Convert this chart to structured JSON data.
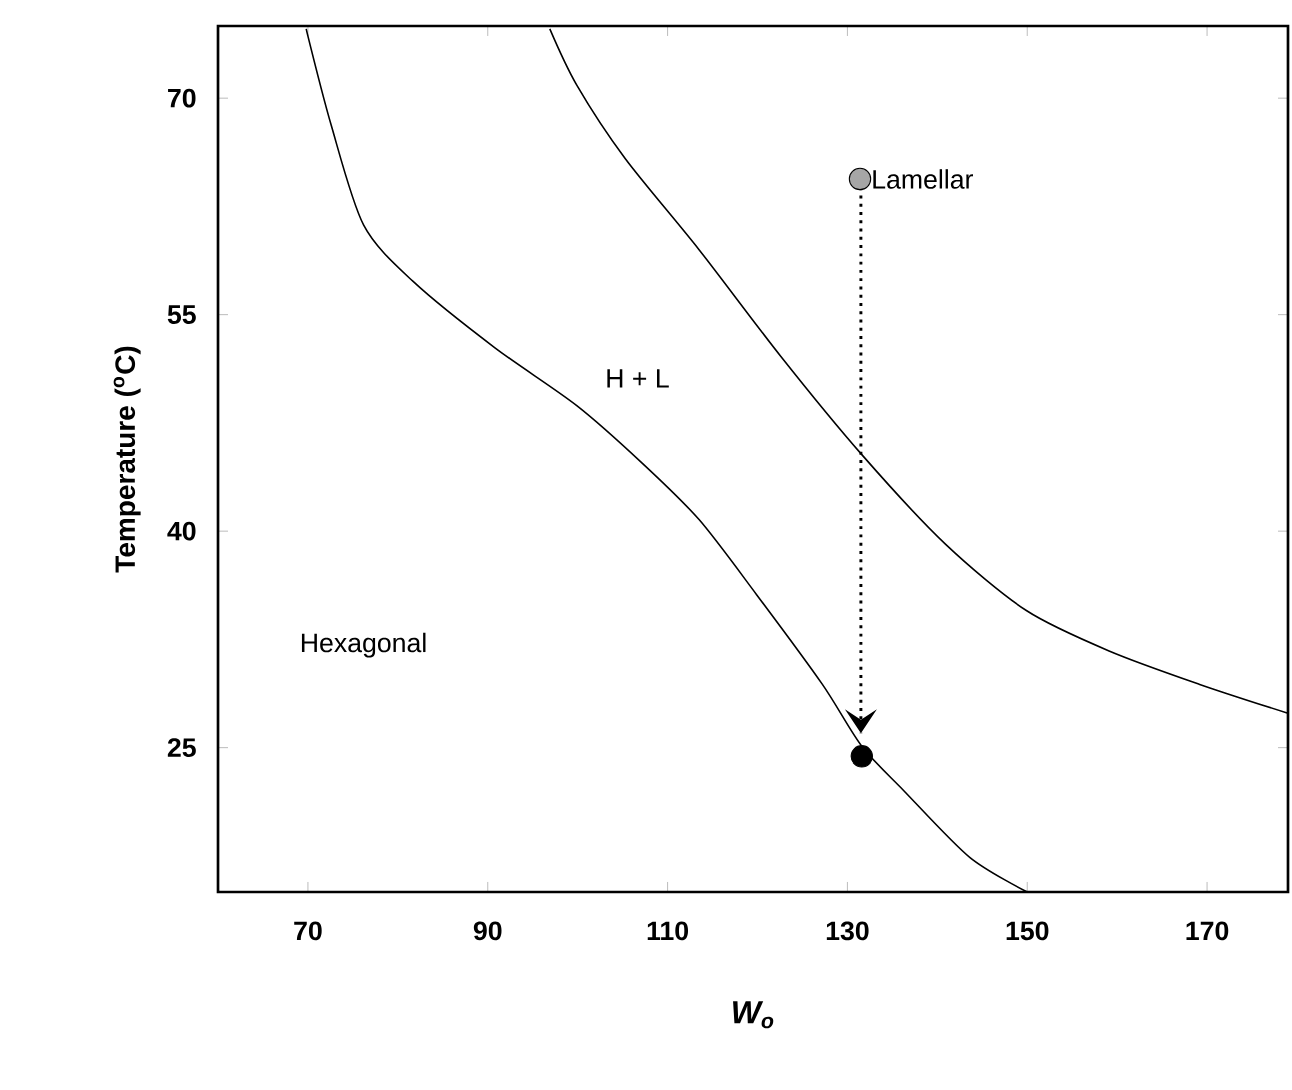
{
  "chart_data": {
    "type": "line",
    "xlabel": "W$_{o}$",
    "ylabel": "Temperature ($^{o}$C)",
    "xlim": [
      60,
      179
    ],
    "ylim": [
      15,
      75
    ],
    "xticks": [
      70,
      90,
      110,
      130,
      150,
      170
    ],
    "yticks": [
      25,
      40,
      55,
      70
    ],
    "grid": false,
    "marker": "none",
    "series": [
      {
        "color": "#000000",
        "line_style": "solid",
        "x": [
          69.8,
          72.6,
          76.2,
          81.7,
          90.8,
          99.9,
          107.2,
          113.5,
          119.9,
          127.2,
          131.6,
          136.3,
          143.6,
          150.0
        ],
        "values": [
          74.8,
          68.1,
          61.2,
          57.3,
          52.7,
          48.7,
          44.7,
          40.8,
          35.6,
          29.4,
          25.1,
          22.0,
          17.4,
          15.0
        ]
      },
      {
        "color": "#000000",
        "line_style": "solid",
        "x": [
          96.9,
          99.9,
          105.3,
          113.5,
          122.6,
          131.6,
          140.9,
          149.9,
          159.1,
          169.1,
          178.9
        ],
        "values": [
          74.8,
          70.9,
          65.8,
          59.5,
          52.1,
          45.3,
          39.1,
          34.5,
          31.7,
          29.4,
          27.4
        ]
      },
      {
        "color": "#000000",
        "line_style": "dotted",
        "x": [
          131.5,
          131.5
        ],
        "values": [
          64.4,
          26.0
        ]
      },
      {
        "type": "scatter",
        "color": "#a6a6a6",
        "marker": "circle",
        "x": [
          131.4
        ],
        "values": [
          64.4
        ]
      },
      {
        "type": "scatter",
        "color": "#000000",
        "marker": "circle",
        "x": [
          131.6
        ],
        "values": [
          24.4
        ]
      }
    ],
    "annotations": [
      {
        "text": "Lamellar",
        "x": 131.4,
        "y": 64.4
      },
      "H + L",
      "Hexagonal"
    ]
  }
}
